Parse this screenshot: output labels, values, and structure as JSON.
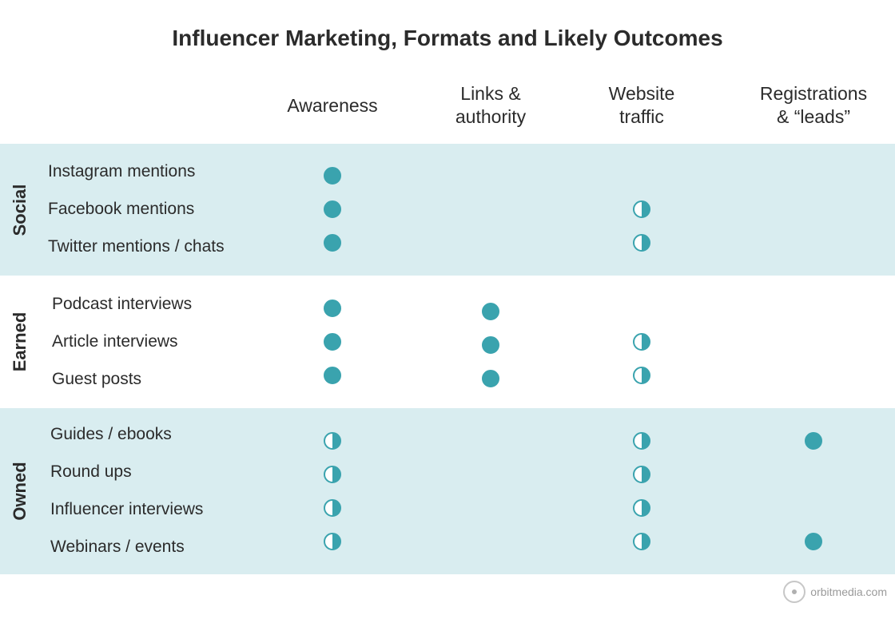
{
  "title": "Influencer Marketing, Formats and Likely Outcomes",
  "columns": [
    "Awareness",
    "Links &\nauthority",
    "Website\ntraffic",
    "Registrations\n& “leads”"
  ],
  "groups": [
    {
      "label": "Social",
      "shaded": true,
      "rows": [
        {
          "label": "Instagram mentions",
          "cells": [
            "full",
            "",
            "",
            ""
          ]
        },
        {
          "label": "Facebook mentions",
          "cells": [
            "full",
            "",
            "half",
            ""
          ]
        },
        {
          "label": "Twitter mentions / chats",
          "cells": [
            "full",
            "",
            "half",
            ""
          ]
        }
      ]
    },
    {
      "label": "Earned",
      "shaded": false,
      "rows": [
        {
          "label": "Podcast interviews",
          "cells": [
            "full",
            "full",
            "",
            ""
          ]
        },
        {
          "label": "Article interviews",
          "cells": [
            "full",
            "full",
            "half",
            ""
          ]
        },
        {
          "label": "Guest posts",
          "cells": [
            "full",
            "full",
            "half",
            ""
          ]
        }
      ]
    },
    {
      "label": "Owned",
      "shaded": true,
      "rows": [
        {
          "label": "Guides / ebooks",
          "cells": [
            "half",
            "",
            "half",
            "full"
          ]
        },
        {
          "label": "Round ups",
          "cells": [
            "half",
            "",
            "half",
            ""
          ]
        },
        {
          "label": "Influencer interviews",
          "cells": [
            "half",
            "",
            "half",
            ""
          ]
        },
        {
          "label": "Webinars / events",
          "cells": [
            "half",
            "",
            "half",
            "full"
          ]
        }
      ]
    }
  ],
  "legend_colors": {
    "accent": "#3aa3ae",
    "band": "#d9edf0"
  },
  "brand": "orbitmedia.com"
}
